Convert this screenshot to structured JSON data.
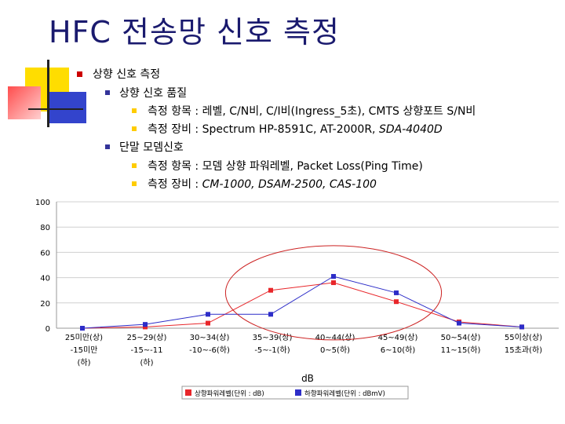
{
  "slide": {
    "title": "HFC 전송망 신호 측정",
    "bullets": [
      {
        "level": 1,
        "text": "상향 신호 측정"
      },
      {
        "level": 2,
        "text": "상향 신호 품질"
      },
      {
        "level": 3,
        "text": "측정 항목 : 레벨, C/N비, C/I비(Ingress_5초), CMTS 상향포트 S/N비"
      },
      {
        "level": 3,
        "text": "측정 장비 : Spectrum HP-8591C, AT-2000R, ",
        "italic": "SDA-4040D"
      },
      {
        "level": 2,
        "text": "단말 모뎀신호"
      },
      {
        "level": 3,
        "text": "측정 항목 : 모뎀 상향 파워레벨, Packet Loss(Ping Time)"
      },
      {
        "level": 3,
        "text": "측정 장비 : ",
        "italic": "CM-1000, DSAM-2500, CAS-100"
      }
    ],
    "colors": {
      "title": "#1a1a6e",
      "bullet1": "#cc0000",
      "bullet2": "#333399",
      "bullet3": "#ffcc00",
      "deco_yellow": "#ffdd00",
      "deco_blue": "#3344cc",
      "deco_red": "#ff3333"
    }
  },
  "chart_data": {
    "type": "line",
    "title": "",
    "xlabel": "dB",
    "ylabel": "",
    "ylim": [
      0,
      100
    ],
    "yticks": [
      0,
      20,
      40,
      60,
      80,
      100
    ],
    "grid": true,
    "legend_position": "bottom",
    "categories": [
      {
        "line1": "25미만(상)",
        "line2": "-15미만",
        "line3": "(하)"
      },
      {
        "line1": "25~29(상)",
        "line2": "-15~-11",
        "line3": "(하)"
      },
      {
        "line1": "30~34(상)",
        "line2": "-10~-6(하)",
        "line3": ""
      },
      {
        "line1": "35~39(상)",
        "line2": "-5~-1(하)",
        "line3": ""
      },
      {
        "line1": "40~44(상)",
        "line2": "0~5(하)",
        "line3": ""
      },
      {
        "line1": "45~49(상)",
        "line2": "6~10(하)",
        "line3": ""
      },
      {
        "line1": "50~54(상)",
        "line2": "11~15(하)",
        "line3": ""
      },
      {
        "line1": "55이상(상)",
        "line2": "15초과(하)",
        "line3": ""
      }
    ],
    "series": [
      {
        "name": "상향파워레벨(단위 : dB)",
        "color": "#e8262a",
        "values": [
          0,
          1,
          4,
          30,
          36,
          21,
          5,
          1
        ]
      },
      {
        "name": "하향파워레벨(단위 : dBmV)",
        "color": "#2d2dc8",
        "values": [
          0,
          3,
          11,
          11,
          41,
          28,
          4,
          1
        ]
      }
    ],
    "annotation": {
      "shape": "ellipse",
      "color": "#cc2222"
    }
  }
}
